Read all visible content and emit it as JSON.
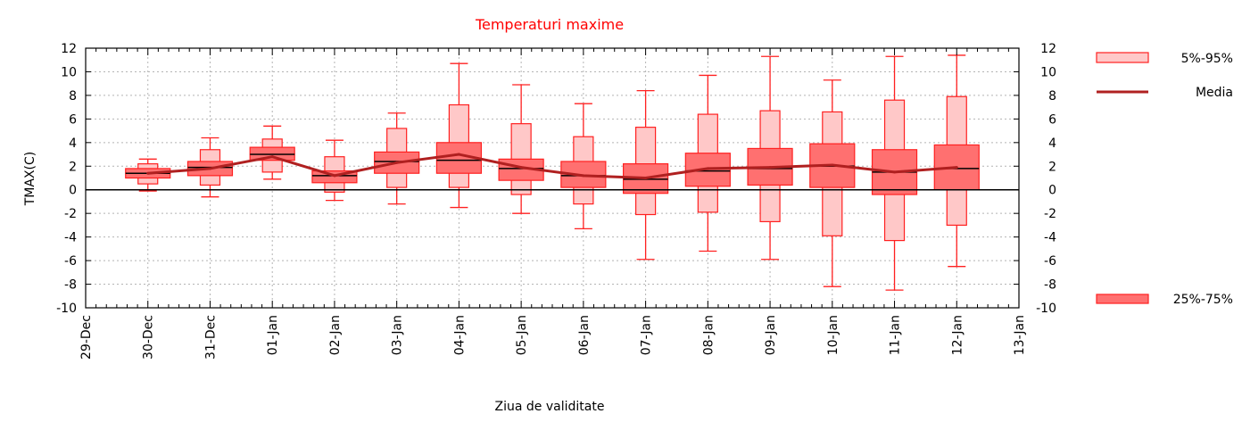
{
  "chart_data": {
    "type": "boxplot",
    "title": "Temperaturi maxime",
    "xlabel": "Ziua de validitate",
    "ylabel": "TMAX(C)",
    "ylim": [
      -10,
      12
    ],
    "yticks": [
      12,
      10,
      8,
      6,
      4,
      2,
      0,
      -2,
      -4,
      -6,
      -8,
      -10
    ],
    "x_tick_labels": [
      "29-Dec",
      "30-Dec",
      "31-Dec",
      "01-Jan",
      "02-Jan",
      "03-Jan",
      "04-Jan",
      "05-Jan",
      "06-Jan",
      "07-Jan",
      "08-Jan",
      "09-Jan",
      "10-Jan",
      "11-Jan",
      "12-Jan",
      "13-Jan"
    ],
    "grid": true,
    "legend": {
      "p5_95": "5%-95%",
      "mean": "Media",
      "p25_75": "25%-75%"
    },
    "colors": {
      "outer_fill": "#ffc8c8",
      "inner_fill": "#ff7070",
      "stroke": "#ff2020",
      "mean_line": "#b02020",
      "median": "#000000",
      "title": "#ff0000"
    },
    "boxes": [
      {
        "day": 1,
        "min": -0.1,
        "p5": 0.5,
        "q1": 1.0,
        "median": 1.4,
        "q3": 1.8,
        "p95": 2.2,
        "max": 2.6
      },
      {
        "day": 2,
        "min": -0.6,
        "p5": 0.4,
        "q1": 1.2,
        "median": 1.9,
        "q3": 2.4,
        "p95": 3.4,
        "max": 4.4
      },
      {
        "day": 3,
        "min": 0.9,
        "p5": 1.5,
        "q1": 2.5,
        "median": 3.0,
        "q3": 3.6,
        "p95": 4.3,
        "max": 5.4
      },
      {
        "day": 4,
        "min": -0.9,
        "p5": -0.2,
        "q1": 0.6,
        "median": 1.2,
        "q3": 1.6,
        "p95": 2.8,
        "max": 4.2
      },
      {
        "day": 5,
        "min": -1.2,
        "p5": 0.2,
        "q1": 1.4,
        "median": 2.4,
        "q3": 3.2,
        "p95": 5.2,
        "max": 6.5
      },
      {
        "day": 6,
        "min": -1.5,
        "p5": 0.2,
        "q1": 1.4,
        "median": 2.5,
        "q3": 4.0,
        "p95": 7.2,
        "max": 10.7
      },
      {
        "day": 7,
        "min": -2.0,
        "p5": -0.4,
        "q1": 0.8,
        "median": 1.8,
        "q3": 2.6,
        "p95": 5.6,
        "max": 8.9
      },
      {
        "day": 8,
        "min": -3.3,
        "p5": -1.2,
        "q1": 0.2,
        "median": 1.2,
        "q3": 2.4,
        "p95": 4.5,
        "max": 7.3
      },
      {
        "day": 9,
        "min": -5.9,
        "p5": -2.1,
        "q1": -0.3,
        "median": 0.9,
        "q3": 2.2,
        "p95": 5.3,
        "max": 8.4
      },
      {
        "day": 10,
        "min": -5.2,
        "p5": -1.9,
        "q1": 0.3,
        "median": 1.6,
        "q3": 3.1,
        "p95": 6.4,
        "max": 9.7
      },
      {
        "day": 11,
        "min": -5.9,
        "p5": -2.7,
        "q1": 0.4,
        "median": 1.8,
        "q3": 3.5,
        "p95": 6.7,
        "max": 11.3
      },
      {
        "day": 12,
        "min": -8.2,
        "p5": -3.9,
        "q1": 0.2,
        "median": 2.0,
        "q3": 3.9,
        "p95": 6.6,
        "max": 9.3
      },
      {
        "day": 13,
        "min": -8.5,
        "p5": -4.3,
        "q1": -0.4,
        "median": 1.5,
        "q3": 3.4,
        "p95": 7.6,
        "max": 11.3
      },
      {
        "day": 14,
        "min": -6.5,
        "p5": -3.0,
        "q1": 0.0,
        "median": 1.8,
        "q3": 3.8,
        "p95": 7.9,
        "max": 11.4
      }
    ],
    "mean": [
      {
        "day": 1,
        "value": 1.4
      },
      {
        "day": 2,
        "value": 1.8
      },
      {
        "day": 3,
        "value": 2.8
      },
      {
        "day": 4,
        "value": 1.2
      },
      {
        "day": 5,
        "value": 2.3
      },
      {
        "day": 6,
        "value": 3.0
      },
      {
        "day": 7,
        "value": 1.9
      },
      {
        "day": 8,
        "value": 1.2
      },
      {
        "day": 9,
        "value": 1.0
      },
      {
        "day": 10,
        "value": 1.8
      },
      {
        "day": 11,
        "value": 1.9
      },
      {
        "day": 12,
        "value": 2.1
      },
      {
        "day": 13,
        "value": 1.5
      },
      {
        "day": 14,
        "value": 1.9
      }
    ]
  }
}
